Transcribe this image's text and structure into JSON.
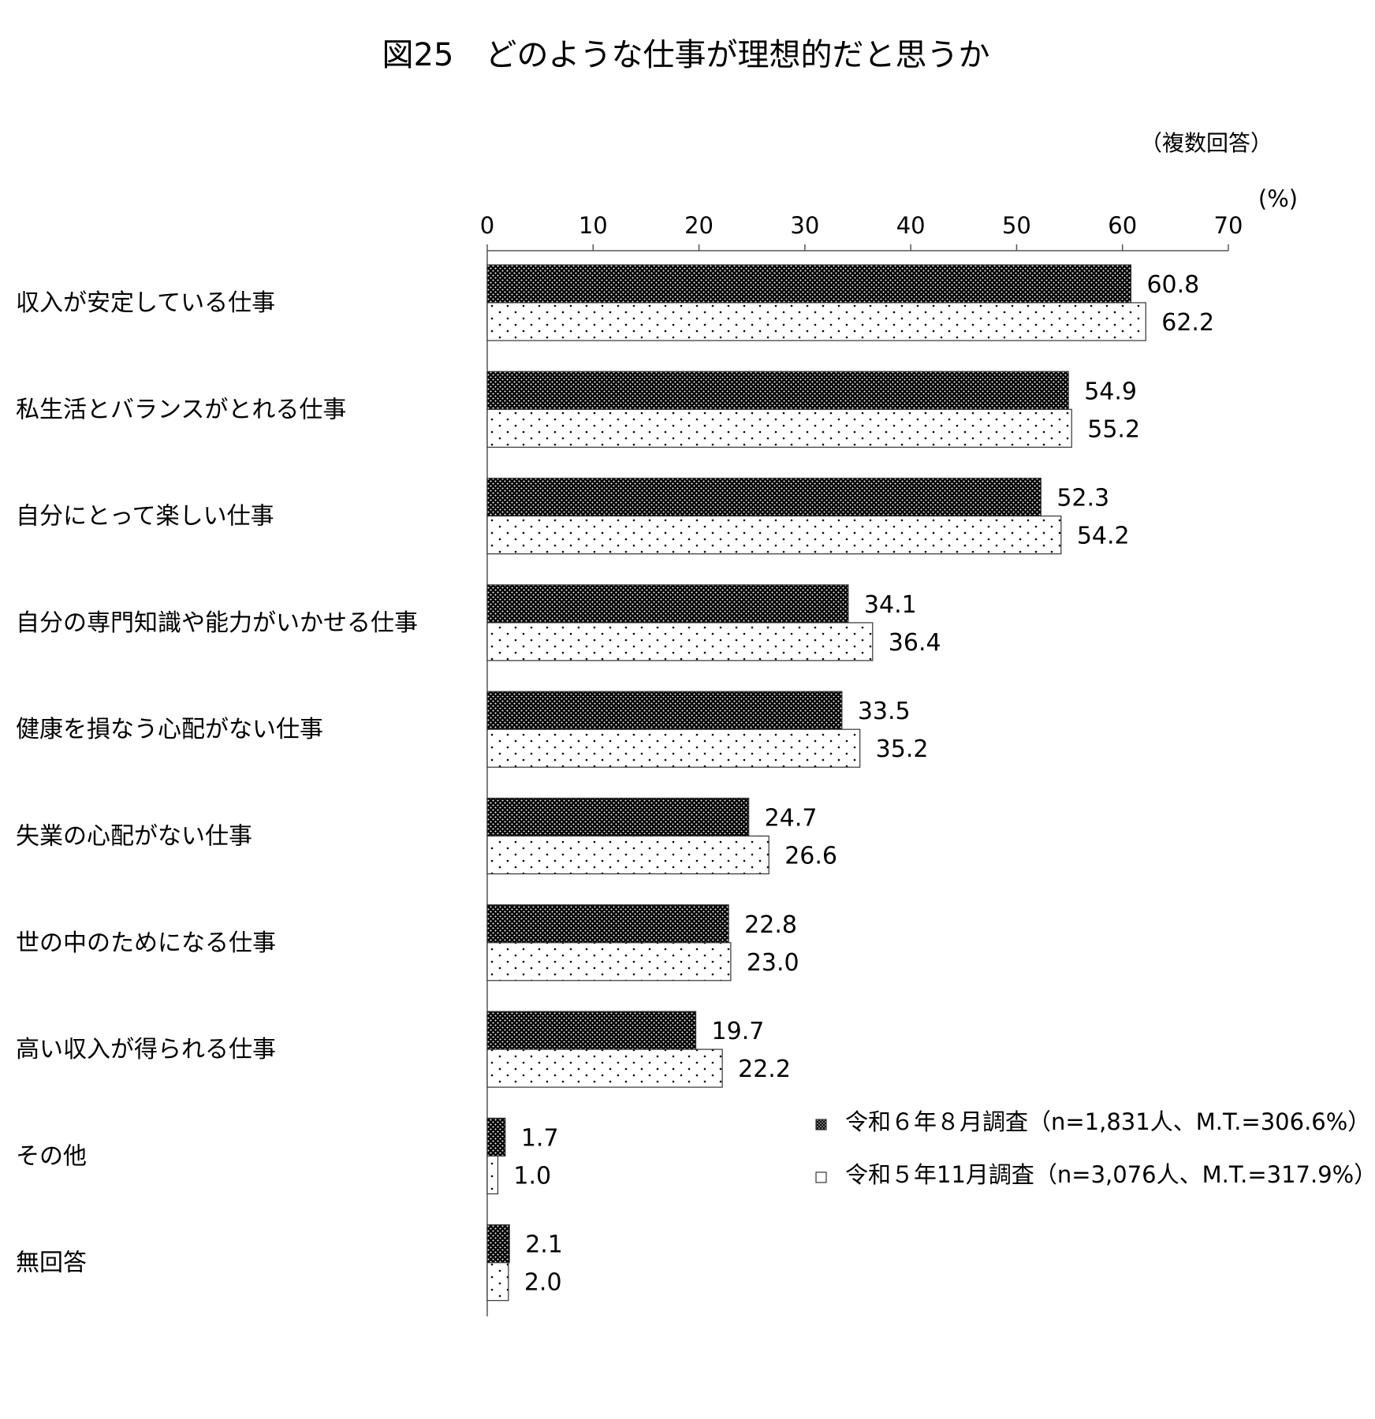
{
  "title": "図25　どのような仕事が理想的だと思うか",
  "note": "（複数回答）",
  "unit": "(%)",
  "chart_data": {
    "type": "bar",
    "orientation": "horizontal",
    "title": "図25　どのような仕事が理想的だと思うか",
    "xlabel": "(%)",
    "xlim": [
      0,
      70
    ],
    "xticks": [
      "0",
      "10",
      "20",
      "30",
      "40",
      "50",
      "60",
      "70"
    ],
    "grid": false,
    "legend_position": "lower-right",
    "categories": [
      "収入が安定している仕事",
      "私生活とバランスがとれる仕事",
      "自分にとって楽しい仕事",
      "自分の専門知識や能力がいかせる仕事",
      "健康を損なう心配がない仕事",
      "失業の心配がない仕事",
      "世の中のためになる仕事",
      "高い収入が得られる仕事",
      "その他",
      "無回答"
    ],
    "series": [
      {
        "name": "令和６年８月調査（n=1,831人、M.T.=306.6%）",
        "values": [
          60.8,
          54.9,
          52.3,
          34.1,
          33.5,
          24.7,
          22.8,
          19.7,
          1.7,
          2.1
        ],
        "labels": [
          "60.8",
          "54.9",
          "52.3",
          "34.1",
          "33.5",
          "24.7",
          "22.8",
          "19.7",
          "1.7",
          "2.1"
        ],
        "pattern": "dense-dots"
      },
      {
        "name": "令和５年11月調査（n=3,076人、M.T.=317.9%）",
        "values": [
          62.2,
          55.2,
          54.2,
          36.4,
          35.2,
          26.6,
          23.0,
          22.2,
          1.0,
          2.0
        ],
        "labels": [
          "62.2",
          "55.2",
          "54.2",
          "36.4",
          "35.2",
          "26.6",
          "23.0",
          "22.2",
          "1.0",
          "2.0"
        ],
        "pattern": "sparse-dots"
      }
    ]
  }
}
